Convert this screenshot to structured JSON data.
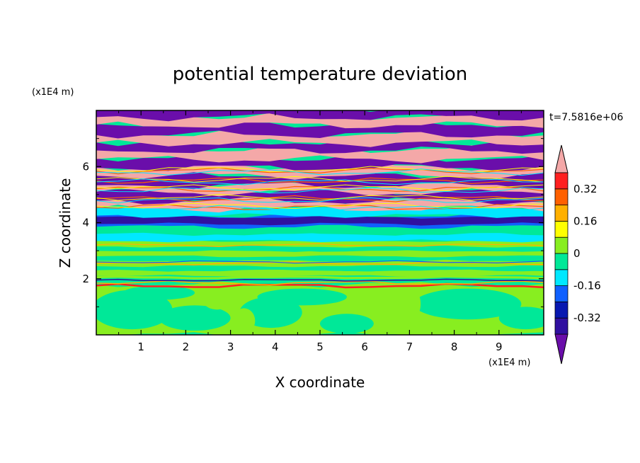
{
  "chart_data": {
    "type": "heatmap",
    "title": "potential temperature deviation",
    "xlabel": "X coordinate",
    "ylabel": "Z coordinate",
    "x_unit": "(x1E4 m)",
    "y_unit": "(x1E4 m)",
    "time_label": "t=7.5816e+06",
    "xlim": [
      0,
      10
    ],
    "ylim": [
      0,
      8
    ],
    "x_ticks": [
      "1",
      "2",
      "3",
      "4",
      "5",
      "6",
      "7",
      "8",
      "9"
    ],
    "y_ticks": [
      "2",
      "4",
      "6"
    ],
    "colorbar": {
      "labels": [
        "0.32",
        "0.16",
        "0",
        "-0.16",
        "-0.32"
      ],
      "label_values": [
        0.32,
        0.16,
        0,
        -0.16,
        -0.32
      ],
      "levels": [
        -0.4,
        -0.32,
        -0.24,
        -0.16,
        -0.08,
        0,
        0.08,
        0.16,
        0.24,
        0.32,
        0.4
      ],
      "colors": [
        "#6a0eaa",
        "#3010a0",
        "#0818b0",
        "#1060ff",
        "#00e8ff",
        "#00e898",
        "#88ee20",
        "#ffff00",
        "#ffb000",
        "#ff6000",
        "#ff2020",
        "#f4a8a8"
      ]
    },
    "bands": [
      {
        "z": [
          0.0,
          1.8
        ],
        "value": 0.02,
        "note": "mixed green / yellow-green"
      },
      {
        "z": [
          1.8,
          2.1
        ],
        "value": 0.03,
        "note": "thin warm filaments"
      },
      {
        "z": [
          2.1,
          3.3
        ],
        "value": 0.04,
        "note": "green stripes"
      },
      {
        "z": [
          3.3,
          4.2
        ],
        "value": -0.2,
        "note": "blue / cyan layers"
      },
      {
        "z": [
          4.2,
          8.0
        ],
        "value": 0.0,
        "note": "alternating pink and purple layers"
      }
    ]
  }
}
